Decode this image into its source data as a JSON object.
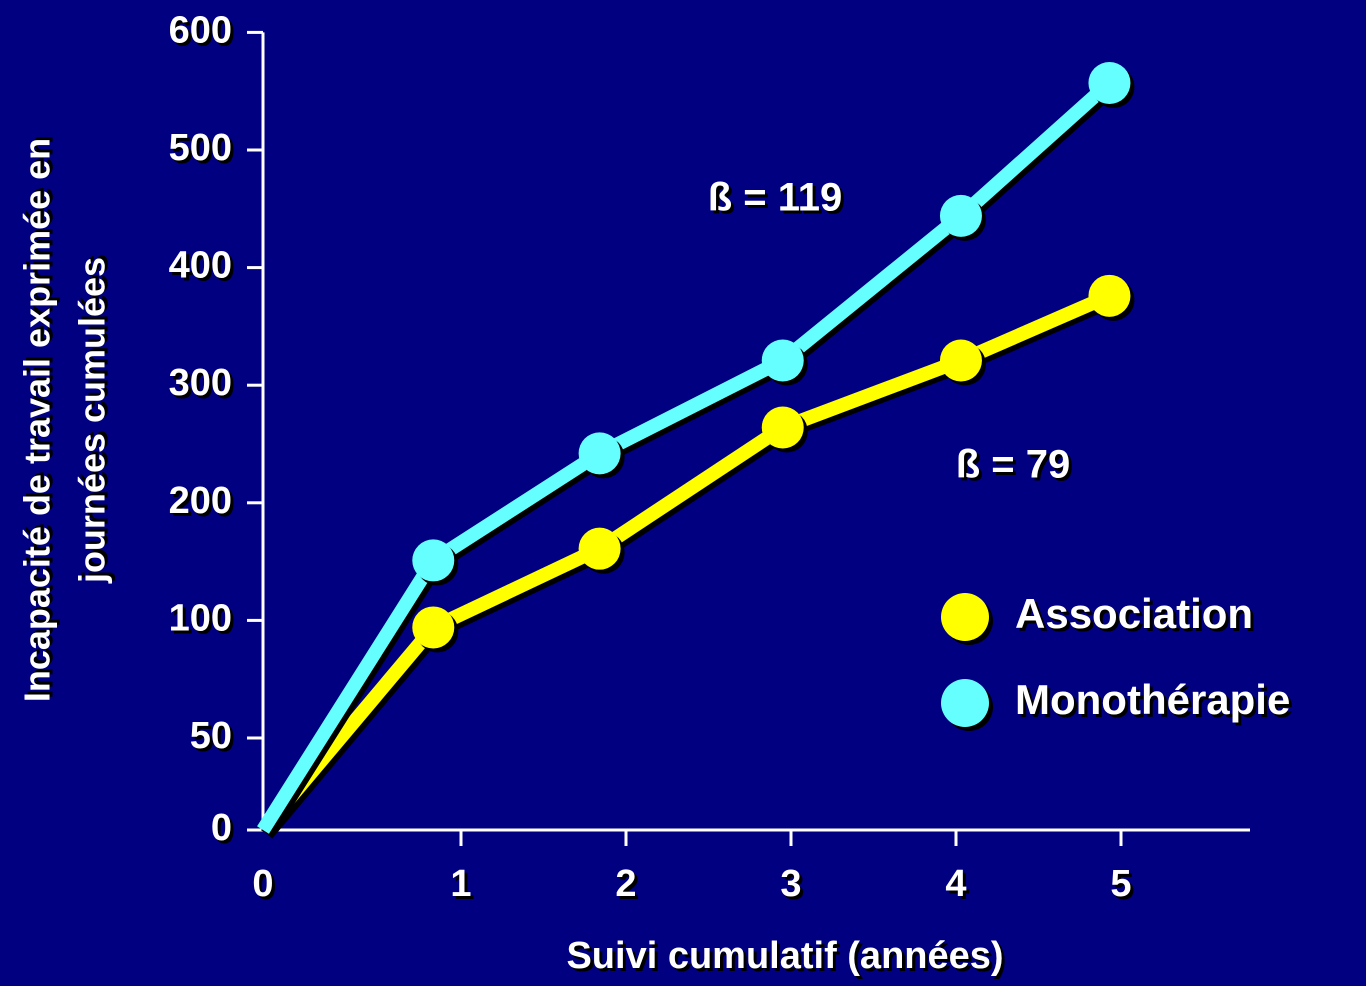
{
  "chart_data": {
    "type": "line",
    "xlabel": "Suivi cumulatif (années)",
    "ylabel": [
      "Incapacité de travail exprimée en",
      "journées cumulées"
    ],
    "series": [
      {
        "name": "Association",
        "color": "#ffff00",
        "x": [
          0,
          0.86,
          1.84,
          2.95,
          4.03,
          4.93
        ],
        "values": [
          0,
          97,
          161,
          264,
          321,
          376
        ]
      },
      {
        "name": "Monothérapie",
        "color": "#66ffff",
        "x": [
          0,
          0.86,
          1.84,
          2.95,
          4.03,
          4.93
        ],
        "values": [
          0,
          151,
          242,
          321,
          444,
          557
        ]
      }
    ],
    "xlim": [
      0,
      6
    ],
    "xticks": [
      0,
      1,
      2,
      3,
      4,
      5
    ],
    "ylim": [
      0,
      600
    ],
    "yticks": [
      0,
      50,
      100,
      200,
      300,
      400,
      500,
      600
    ],
    "annotations": [
      {
        "text": "ß = 119",
        "color": "#ffff00"
      },
      {
        "text": "ß = 79",
        "color": "#66ffff"
      }
    ],
    "legend": "right",
    "background": "#000080"
  }
}
